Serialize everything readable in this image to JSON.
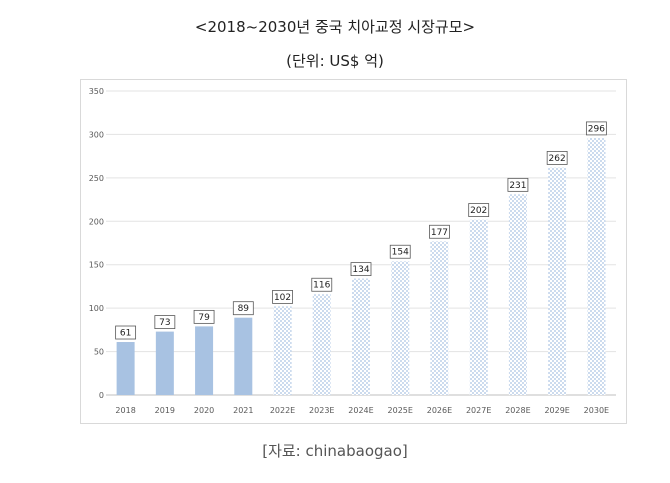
{
  "title": "<2018~2030년 중국 치아교정 시장규모>",
  "unit": "(단위: US$ 억)",
  "source": "[자료: chinabaogao]",
  "colors": {
    "actual": "#a8c2e2",
    "forecast_dots": "#a8c2e2",
    "grid": "#e3e3e3",
    "axis_text": "#595959"
  },
  "chart_data": {
    "type": "bar",
    "categories": [
      "2018",
      "2019",
      "2020",
      "2021",
      "2022E",
      "2023E",
      "2024E",
      "2025E",
      "2026E",
      "2027E",
      "2028E",
      "2029E",
      "2030E"
    ],
    "values": [
      61,
      73,
      79,
      89,
      102,
      116,
      134,
      154,
      177,
      202,
      231,
      262,
      296
    ],
    "bar_style": [
      "solid",
      "solid",
      "solid",
      "solid",
      "dotted",
      "dotted",
      "dotted",
      "dotted",
      "dotted",
      "dotted",
      "dotted",
      "dotted",
      "dotted"
    ],
    "ylim": [
      0,
      350
    ],
    "yticks": [
      0,
      50,
      100,
      150,
      200,
      250,
      300,
      350
    ],
    "grid": true,
    "data_labels": true
  }
}
